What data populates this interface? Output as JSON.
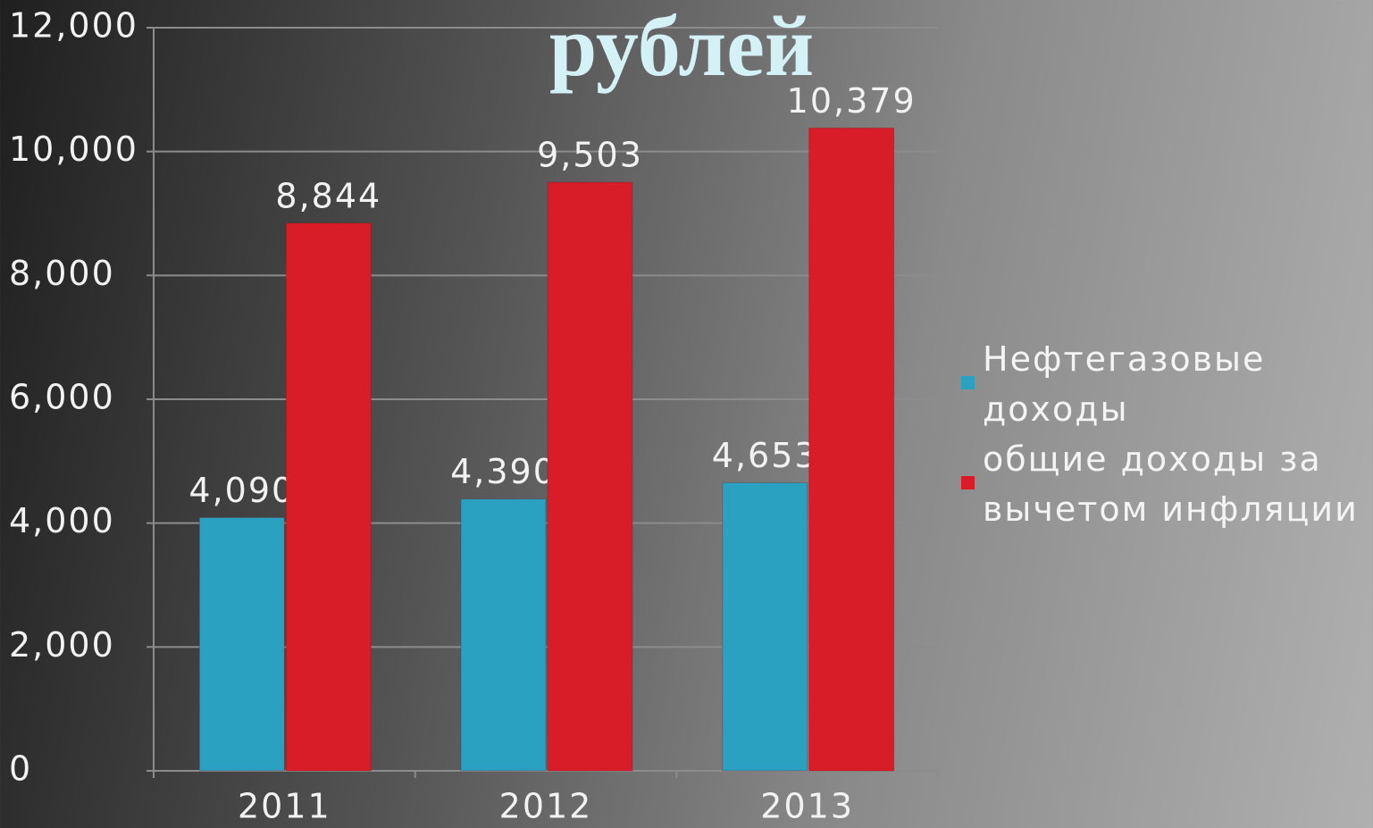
{
  "chart_data": {
    "type": "bar",
    "title": "рублей",
    "categories": [
      "2011",
      "2012",
      "2013"
    ],
    "series": [
      {
        "name": "Нефтегазовые доходы",
        "color": "#2aa1c0",
        "values": [
          4090,
          4390,
          4653
        ],
        "value_labels": [
          "4,090",
          "4,390",
          "4,653"
        ]
      },
      {
        "name": "общие доходы за вычетом инфляции",
        "color": "#d81c28",
        "values": [
          8844,
          9503,
          10379
        ],
        "value_labels": [
          "8,844",
          "9,503",
          "10,379"
        ]
      }
    ],
    "ylim": [
      0,
      12000
    ],
    "yticks": [
      0,
      {
        "value": 2000,
        "label": "2,000"
      },
      {
        "value": 4000,
        "label": "4,000"
      },
      {
        "value": 6000,
        "label": "6,000"
      },
      {
        "value": 8000,
        "label": "8,000"
      },
      {
        "value": 10000,
        "label": "10,000"
      },
      {
        "value": 12000,
        "label": "12,000"
      }
    ],
    "grid": true,
    "legend": "right"
  }
}
